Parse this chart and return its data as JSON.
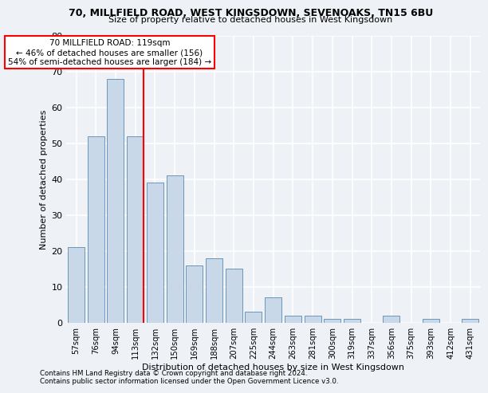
{
  "title1": "70, MILLFIELD ROAD, WEST KINGSDOWN, SEVENOAKS, TN15 6BU",
  "title2": "Size of property relative to detached houses in West Kingsdown",
  "xlabel": "Distribution of detached houses by size in West Kingsdown",
  "ylabel": "Number of detached properties",
  "categories": [
    "57sqm",
    "76sqm",
    "94sqm",
    "113sqm",
    "132sqm",
    "150sqm",
    "169sqm",
    "188sqm",
    "207sqm",
    "225sqm",
    "244sqm",
    "263sqm",
    "281sqm",
    "300sqm",
    "319sqm",
    "337sqm",
    "356sqm",
    "375sqm",
    "393sqm",
    "412sqm",
    "431sqm"
  ],
  "values": [
    21,
    52,
    68,
    52,
    39,
    41,
    16,
    18,
    15,
    3,
    7,
    2,
    2,
    1,
    1,
    0,
    2,
    0,
    1,
    0,
    1
  ],
  "bar_color": "#c8d8e8",
  "bar_edge_color": "#5a8ab0",
  "red_line_index": 3,
  "annotation_line1": "70 MILLFIELD ROAD: 119sqm",
  "annotation_line2": "← 46% of detached houses are smaller (156)",
  "annotation_line3": "54% of semi-detached houses are larger (184) →",
  "annotation_box_color": "white",
  "annotation_box_edge": "red",
  "red_line_color": "red",
  "ylim": [
    0,
    80
  ],
  "yticks": [
    0,
    10,
    20,
    30,
    40,
    50,
    60,
    70,
    80
  ],
  "footnote1": "Contains HM Land Registry data © Crown copyright and database right 2024.",
  "footnote2": "Contains public sector information licensed under the Open Government Licence v3.0.",
  "bg_color": "#eef2f7",
  "grid_color": "white"
}
